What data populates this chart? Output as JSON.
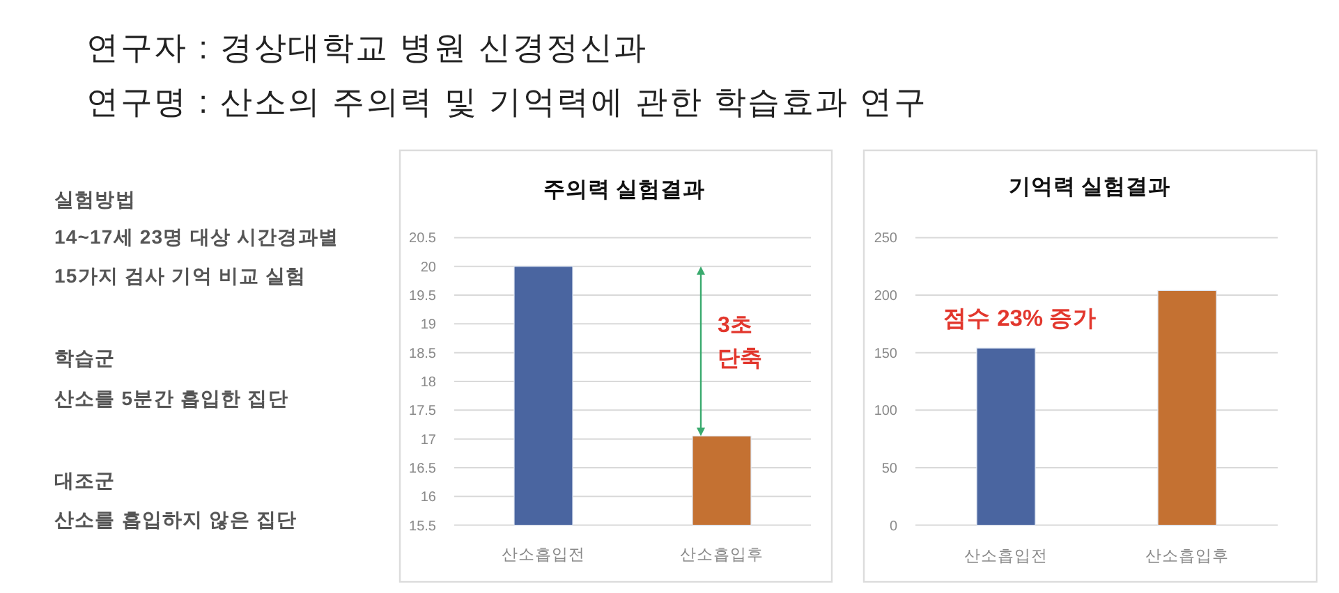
{
  "chart_data": [
    {
      "type": "other",
      "title": "연구자 : 경상대학교 병원 신경정신과",
      "subtitle": "연구명 : 산소의 주의력 및 기억력에 관한 학습효과 연구",
      "annotations": [
        "실험방법",
        "14~17세 23명 대상 시간경과별",
        "15가지 검사 기억 비교 실험",
        "학습군",
        "산소를 5분간 흡입한 집단",
        "대조군",
        "산소를 흡입하지 않은 집단"
      ]
    },
    {
      "type": "bar",
      "title": "주의력 실험결과",
      "categories": [
        "산소흡입전",
        "산소흡입후"
      ],
      "values": [
        20,
        17.05
      ],
      "colors": [
        "#4a65a0",
        "#c47132"
      ],
      "ylim": [
        15.5,
        20.5
      ],
      "yticks": [
        15.5,
        16,
        16.5,
        17,
        17.5,
        18,
        18.5,
        19,
        19.5,
        20,
        20.5
      ],
      "grid": "y",
      "annotations": [
        "3초 단축"
      ]
    },
    {
      "type": "bar",
      "title": "기억력 실험결과",
      "categories": [
        "산소흡입전",
        "산소흡입후"
      ],
      "values": [
        154,
        204
      ],
      "colors": [
        "#4a65a0",
        "#c47132"
      ],
      "ylim": [
        0,
        250
      ],
      "yticks": [
        0,
        50,
        100,
        150,
        200,
        250
      ],
      "grid": "y",
      "annotations": [
        "점수 23% 증가"
      ]
    }
  ]
}
